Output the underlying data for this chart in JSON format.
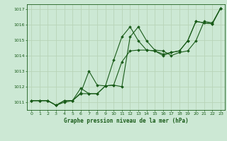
{
  "title": "Graphe pression niveau de la mer (hPa)",
  "bg_color": "#cce8d4",
  "grid_color": "#b8d4b8",
  "line_color": "#1a5c1a",
  "marker_color": "#1a5c1a",
  "xlim": [
    -0.5,
    23.5
  ],
  "ylim": [
    1010.5,
    1017.3
  ],
  "yticks": [
    1011,
    1012,
    1013,
    1014,
    1015,
    1016,
    1017
  ],
  "xticks": [
    0,
    1,
    2,
    3,
    4,
    5,
    6,
    7,
    8,
    9,
    10,
    11,
    12,
    13,
    14,
    15,
    16,
    17,
    18,
    19,
    20,
    21,
    22,
    23
  ],
  "series_x": [
    [
      0,
      1,
      2,
      3,
      4,
      5,
      6,
      7,
      8,
      9,
      10,
      11,
      12,
      13,
      14,
      15,
      16,
      17,
      18,
      19,
      20,
      21,
      22,
      23
    ],
    [
      0,
      1,
      2,
      3,
      4,
      5,
      6,
      7,
      8,
      9,
      10,
      11,
      12,
      13,
      14,
      15,
      16,
      17,
      18,
      19,
      20,
      21,
      22,
      23
    ],
    [
      0,
      1,
      2,
      3,
      4,
      5,
      6,
      7,
      8,
      9,
      10,
      11,
      12,
      13,
      14,
      15,
      16,
      17,
      18,
      19,
      20,
      21,
      22,
      23
    ]
  ],
  "series_y": [
    [
      1011.1,
      1011.1,
      1011.1,
      1010.8,
      1011.0,
      1011.1,
      1011.6,
      1013.0,
      1012.1,
      1012.05,
      1013.7,
      1015.2,
      1015.85,
      1014.95,
      1014.35,
      1014.3,
      1014.0,
      1014.2,
      1014.3,
      1014.95,
      1016.2,
      1016.1,
      1016.05,
      1017.05
    ],
    [
      1011.1,
      1011.1,
      1011.1,
      1010.8,
      1011.1,
      1011.1,
      1011.9,
      1011.55,
      1011.55,
      1012.05,
      1012.1,
      1013.6,
      1014.3,
      1014.35,
      1014.35,
      1014.3,
      1014.1,
      1014.2,
      1014.3,
      1014.95,
      1016.2,
      1016.1,
      1016.05,
      1017.05
    ],
    [
      1011.1,
      1011.1,
      1011.1,
      1010.8,
      1011.1,
      1011.1,
      1011.55,
      1011.55,
      1011.55,
      1012.05,
      1012.1,
      1012.0,
      1015.2,
      1015.85,
      1014.95,
      1014.35,
      1014.3,
      1014.0,
      1014.2,
      1014.3,
      1014.95,
      1016.2,
      1016.1,
      1017.05
    ]
  ]
}
